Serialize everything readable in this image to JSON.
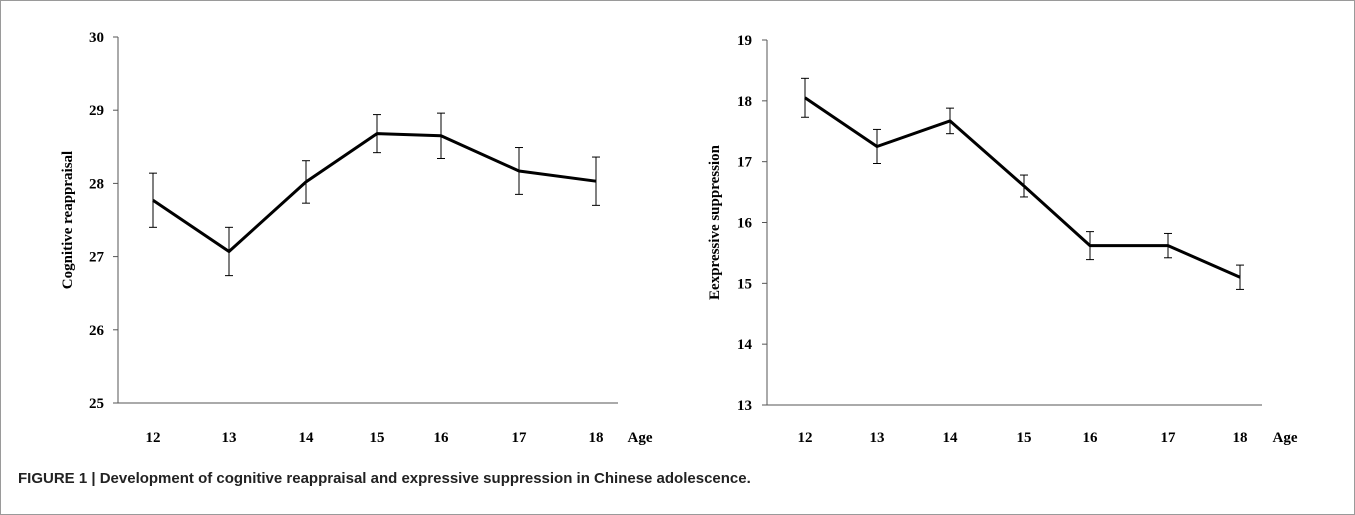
{
  "figure": {
    "caption": "FIGURE 1 | Development of cognitive reappraisal and expressive suppression in Chinese adolescence."
  },
  "chart_data": [
    {
      "type": "line",
      "ylabel": "Cognitive  reappraisal",
      "xlabel": "Age",
      "ylim": [
        25,
        30
      ],
      "yticks": [
        25,
        26,
        27,
        28,
        29,
        30
      ],
      "categories": [
        "12",
        "13",
        "14",
        "15",
        "16",
        "17",
        "18"
      ],
      "values": [
        27.77,
        27.07,
        28.02,
        28.68,
        28.65,
        28.17,
        28.03
      ],
      "errors": [
        0.37,
        0.33,
        0.29,
        0.26,
        0.31,
        0.32,
        0.33
      ],
      "line_color": "#000000",
      "grid": false
    },
    {
      "type": "line",
      "ylabel": "Eexpressive suppression",
      "xlabel": "Age",
      "ylim": [
        13,
        19
      ],
      "yticks": [
        13,
        14,
        15,
        16,
        17,
        18,
        19
      ],
      "categories": [
        "12",
        "13",
        "14",
        "15",
        "16",
        "17",
        "18"
      ],
      "values": [
        18.05,
        17.25,
        17.67,
        16.6,
        15.62,
        15.62,
        15.1
      ],
      "errors": [
        0.32,
        0.28,
        0.21,
        0.18,
        0.23,
        0.2,
        0.2
      ],
      "line_color": "#000000",
      "grid": false
    }
  ]
}
